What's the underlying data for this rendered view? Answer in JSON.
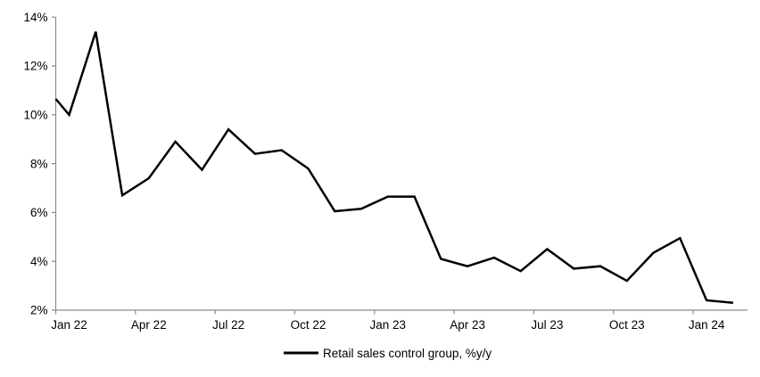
{
  "chart_data": {
    "type": "line",
    "title": "",
    "xlabel": "",
    "ylabel": "",
    "categories": [
      "Jan 22",
      "Feb 22",
      "Mar 22",
      "Apr 22",
      "May 22",
      "Jun 22",
      "Jul 22",
      "Aug 22",
      "Sep 22",
      "Oct 22",
      "Nov 22",
      "Dec 22",
      "Jan 23",
      "Feb 23",
      "Mar 23",
      "Apr 23",
      "May 23",
      "Jun 23",
      "Jul 23",
      "Aug 23",
      "Sep 23",
      "Oct 23",
      "Nov 23",
      "Dec 23",
      "Jan 24",
      "Feb 24"
    ],
    "series": [
      {
        "name": "Retail sales control group, %y/y",
        "values": [
          10.0,
          13.4,
          6.7,
          7.4,
          8.9,
          7.75,
          9.4,
          8.4,
          8.55,
          7.8,
          6.05,
          6.15,
          6.65,
          6.65,
          4.1,
          3.8,
          4.15,
          3.6,
          4.5,
          3.7,
          3.8,
          3.2,
          4.35,
          4.95,
          2.4,
          2.3
        ]
      }
    ],
    "left_edge_clipped_value": 10.65,
    "x_tick_labels": [
      "Jan 22",
      "Apr 22",
      "Jul 22",
      "Oct 22",
      "Jan 23",
      "Apr 23",
      "Jul 23",
      "Oct 23",
      "Jan 24"
    ],
    "y_tick_labels": [
      "2%",
      "4%",
      "6%",
      "8%",
      "10%",
      "12%",
      "14%"
    ],
    "ylim": [
      2,
      14
    ],
    "y_tick_step": 2,
    "grid": false,
    "legend_position": "bottom-center",
    "colors": {
      "line": "#000000",
      "axis": "#8a8a8a",
      "text": "#000000",
      "background": "#ffffff"
    }
  }
}
